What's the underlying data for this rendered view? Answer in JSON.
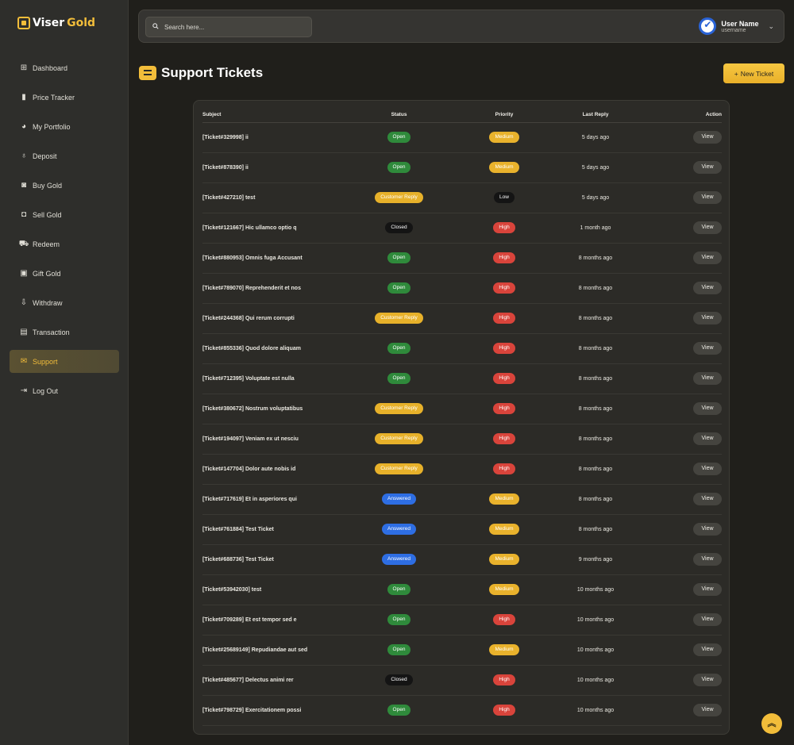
{
  "brand": {
    "part1": "Viser",
    "part2": "Gold"
  },
  "sidebar": {
    "items": [
      {
        "label": "Dashboard",
        "icon": "dashboard-icon",
        "glyph": "⊞",
        "active": false
      },
      {
        "label": "Price Tracker",
        "icon": "chart-bars-icon",
        "glyph": "▮",
        "active": false
      },
      {
        "label": "My Portfolio",
        "icon": "pie-chart-icon",
        "glyph": "◕",
        "active": false
      },
      {
        "label": "Deposit",
        "icon": "money-bag-icon",
        "glyph": "♁",
        "active": false
      },
      {
        "label": "Buy Gold",
        "icon": "buy-gold-icon",
        "glyph": "◙",
        "active": false
      },
      {
        "label": "Sell Gold",
        "icon": "sell-gold-icon",
        "glyph": "◘",
        "active": false
      },
      {
        "label": "Redeem",
        "icon": "truck-icon",
        "glyph": "⛟",
        "active": false
      },
      {
        "label": "Gift Gold",
        "icon": "gift-icon",
        "glyph": "▣",
        "active": false
      },
      {
        "label": "Withdraw",
        "icon": "withdraw-icon",
        "glyph": "⇩",
        "active": false
      },
      {
        "label": "Transaction",
        "icon": "receipt-icon",
        "glyph": "▤",
        "active": false
      },
      {
        "label": "Support",
        "icon": "envelope-icon",
        "glyph": "✉",
        "active": true
      },
      {
        "label": "Log Out",
        "icon": "logout-icon",
        "glyph": "⇥",
        "active": false
      }
    ]
  },
  "search": {
    "placeholder": "Search here..."
  },
  "user": {
    "name": "User Name",
    "handle": "username"
  },
  "page": {
    "title": "Support Tickets",
    "new_ticket_label": "New Ticket"
  },
  "table": {
    "headers": {
      "subject": "Subject",
      "status": "Status",
      "priority": "Priority",
      "last_reply": "Last Reply",
      "action": "Action"
    },
    "view_label": "View",
    "rows": [
      {
        "subject": "[Ticket#329998] ii",
        "status": "Open",
        "priority": "Medium",
        "last_reply": "5 days ago"
      },
      {
        "subject": "[Ticket#878390] ii",
        "status": "Open",
        "priority": "Medium",
        "last_reply": "5 days ago"
      },
      {
        "subject": "[Ticket#427210] test",
        "status": "Customer Reply",
        "priority": "Low",
        "last_reply": "5 days ago"
      },
      {
        "subject": "[Ticket#121667] Hic ullamco optio q",
        "status": "Closed",
        "priority": "High",
        "last_reply": "1 month ago"
      },
      {
        "subject": "[Ticket#880953] Omnis fuga Accusant",
        "status": "Open",
        "priority": "High",
        "last_reply": "8 months ago"
      },
      {
        "subject": "[Ticket#789070] Reprehenderit et nos",
        "status": "Open",
        "priority": "High",
        "last_reply": "8 months ago"
      },
      {
        "subject": "[Ticket#244368] Qui rerum corrupti",
        "status": "Customer Reply",
        "priority": "High",
        "last_reply": "8 months ago"
      },
      {
        "subject": "[Ticket#855336] Quod dolore aliquam",
        "status": "Open",
        "priority": "High",
        "last_reply": "8 months ago"
      },
      {
        "subject": "[Ticket#712395] Voluptate est nulla",
        "status": "Open",
        "priority": "High",
        "last_reply": "8 months ago"
      },
      {
        "subject": "[Ticket#380672] Nostrum voluptatibus",
        "status": "Customer Reply",
        "priority": "High",
        "last_reply": "8 months ago"
      },
      {
        "subject": "[Ticket#194097] Veniam ex ut nesciu",
        "status": "Customer Reply",
        "priority": "High",
        "last_reply": "8 months ago"
      },
      {
        "subject": "[Ticket#147704] Dolor aute nobis id",
        "status": "Customer Reply",
        "priority": "High",
        "last_reply": "8 months ago"
      },
      {
        "subject": "[Ticket#717619] Et in asperiores qui",
        "status": "Answered",
        "priority": "Medium",
        "last_reply": "8 months ago"
      },
      {
        "subject": "[Ticket#761884] Test Ticket",
        "status": "Answered",
        "priority": "Medium",
        "last_reply": "8 months ago"
      },
      {
        "subject": "[Ticket#688736] Test Ticket",
        "status": "Answered",
        "priority": "Medium",
        "last_reply": "9 months ago"
      },
      {
        "subject": "[Ticket#53942030] test",
        "status": "Open",
        "priority": "Medium",
        "last_reply": "10 months ago"
      },
      {
        "subject": "[Ticket#709289] Et est tempor sed e",
        "status": "Open",
        "priority": "High",
        "last_reply": "10 months ago"
      },
      {
        "subject": "[Ticket#25689149] Repudiandae aut sed",
        "status": "Open",
        "priority": "Medium",
        "last_reply": "10 months ago"
      },
      {
        "subject": "[Ticket#485677] Delectus animi rer",
        "status": "Closed",
        "priority": "High",
        "last_reply": "10 months ago"
      },
      {
        "subject": "[Ticket#798729] Exercitationem possi",
        "status": "Open",
        "priority": "High",
        "last_reply": "10 months ago"
      }
    ]
  },
  "colors": {
    "accent": "#f2bd3a",
    "open": "#2f8a3b",
    "answered": "#2e6ee3",
    "high": "#d9443b",
    "closed": "#141414"
  }
}
